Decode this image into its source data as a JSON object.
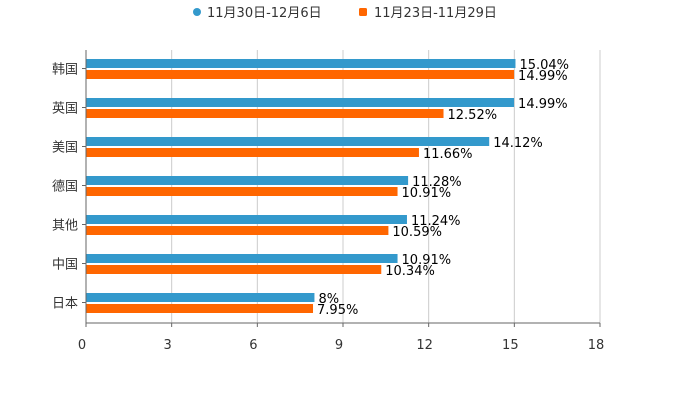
{
  "chart_data": {
    "type": "bar",
    "orientation": "horizontal",
    "categories": [
      "韩国",
      "英国",
      "美国",
      "德国",
      "其他",
      "中国",
      "日本"
    ],
    "series": [
      {
        "name": "11月30日-12月6日",
        "color": "#3399cc",
        "values": [
          15.04,
          14.99,
          14.12,
          11.28,
          11.24,
          10.91,
          8
        ],
        "labels": [
          "15.04%",
          "14.99%",
          "14.12%",
          "11.28%",
          "11.24%",
          "10.91%",
          "8%"
        ]
      },
      {
        "name": "11月23日-11月29日",
        "color": "#ff6600",
        "values": [
          14.99,
          12.52,
          11.66,
          10.91,
          10.59,
          10.34,
          7.95
        ],
        "labels": [
          "14.99%",
          "12.52%",
          "11.66%",
          "10.91%",
          "10.59%",
          "10.34%",
          "7.95%"
        ]
      }
    ],
    "xlim": [
      0,
      18
    ],
    "xticks": [
      "0",
      "3",
      "6",
      "9",
      "12",
      "15",
      "18"
    ],
    "grid": true,
    "legend_position": "top-center",
    "title": "",
    "xlabel": "",
    "ylabel": ""
  }
}
